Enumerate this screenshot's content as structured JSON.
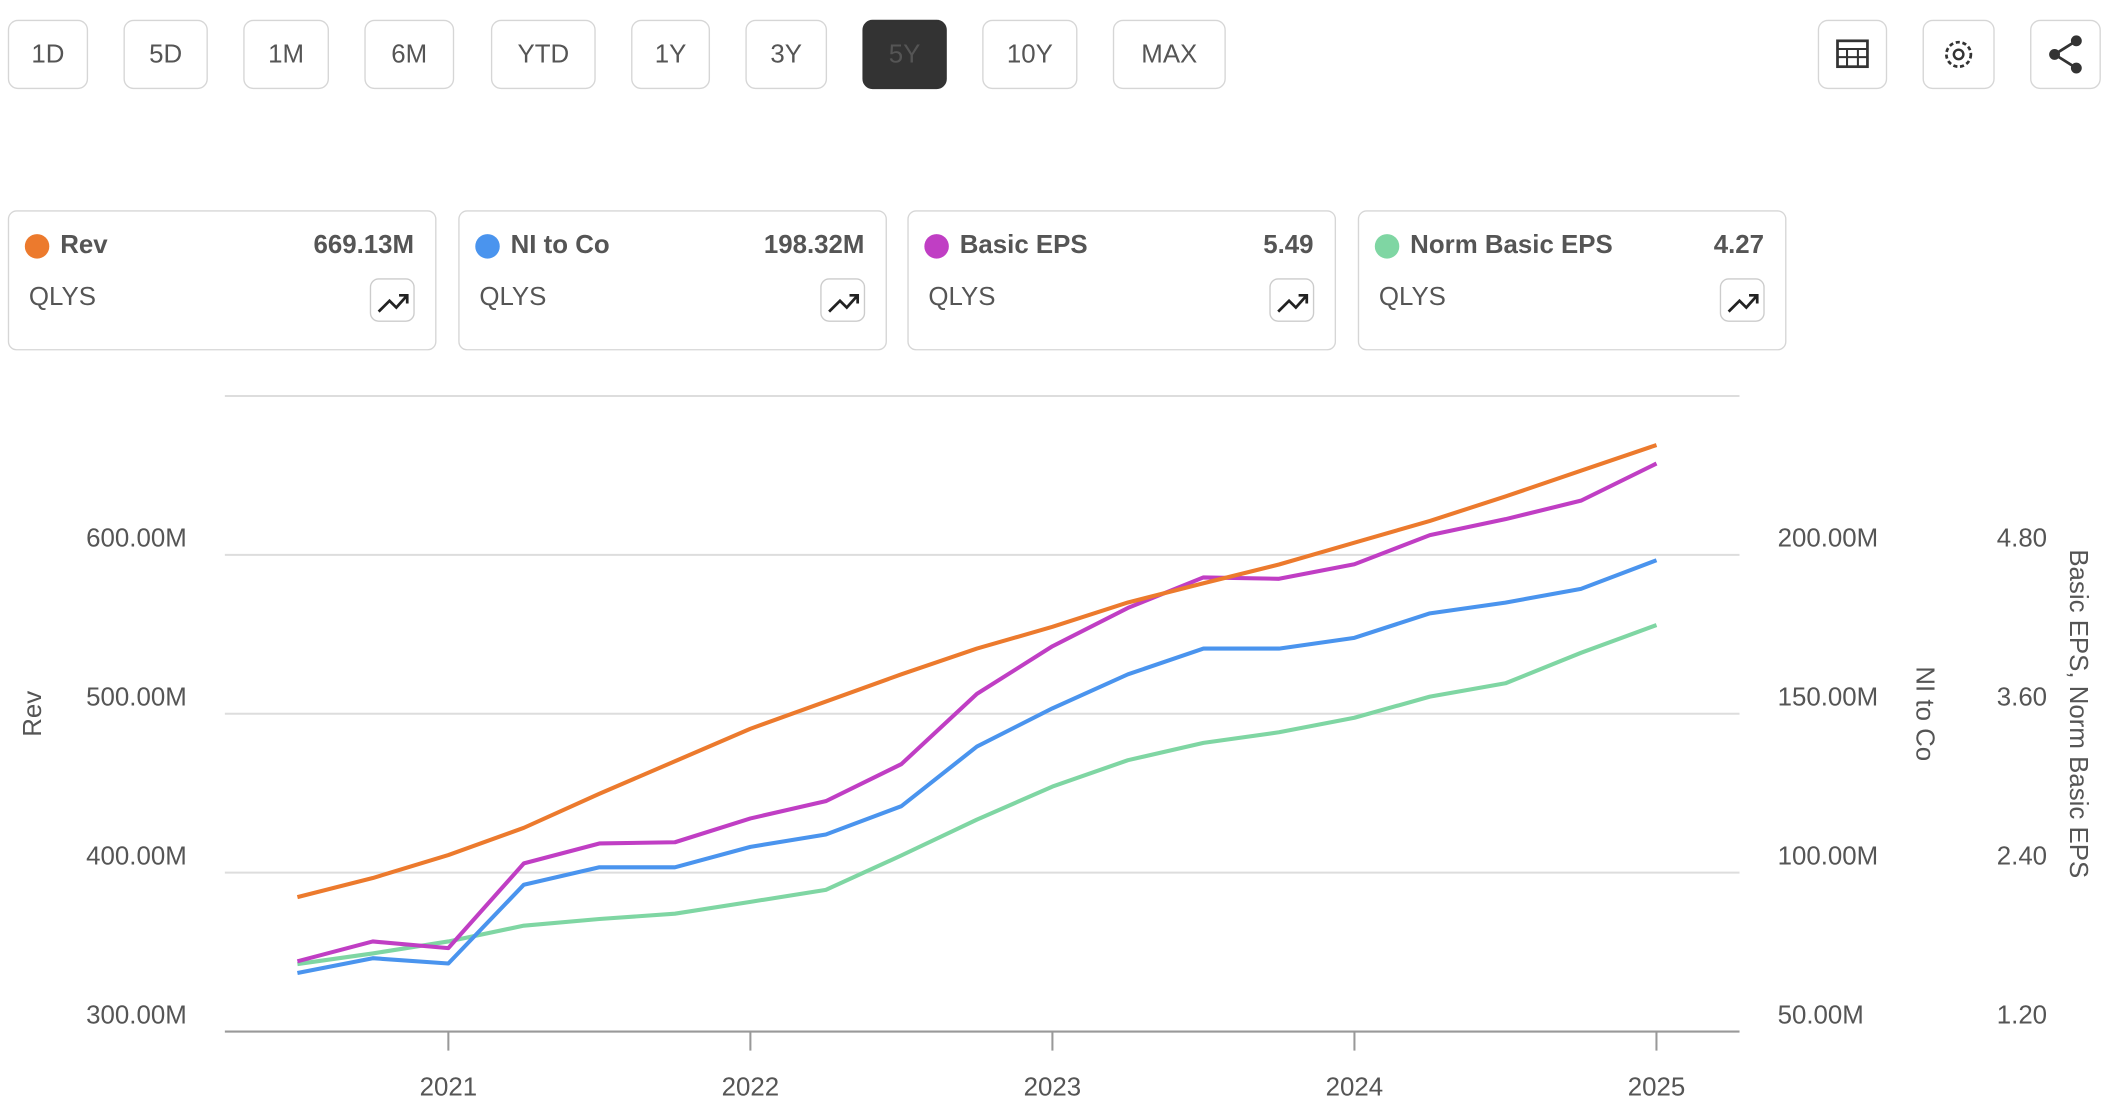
{
  "range_buttons": [
    "1D",
    "5D",
    "1M",
    "6M",
    "YTD",
    "1Y",
    "3Y",
    "5Y",
    "10Y",
    "MAX"
  ],
  "selected_range": "5Y",
  "chart_data": {
    "type": "line",
    "ylabel": "Rev",
    "y2label": "NI to Co",
    "y3label": "Basic EPS, Norm Basic EPS",
    "x": [
      2020.5,
      2020.75,
      2021,
      2021.25,
      2021.5,
      2021.75,
      2022,
      2022.25,
      2022.5,
      2022.75,
      2023,
      2023.25,
      2023.5,
      2023.75,
      2024,
      2024.25,
      2024.5,
      2024.75,
      2025
    ],
    "xlim": [
      2020.26,
      2025.275
    ],
    "xticks": [
      2021,
      2022,
      2023,
      2024,
      2025
    ],
    "ylim": [
      300,
      700
    ],
    "yticks": [
      {
        "value": 300,
        "label": "300.00M"
      },
      {
        "value": 400,
        "label": "400.00M"
      },
      {
        "value": 500,
        "label": "500.00M"
      },
      {
        "value": 600,
        "label": "600.00M"
      }
    ],
    "y2lim": [
      50,
      250
    ],
    "y2ticks": [
      {
        "value": 50,
        "label": "50.00M"
      },
      {
        "value": 100,
        "label": "100.00M"
      },
      {
        "value": 150,
        "label": "150.00M"
      },
      {
        "value": 200,
        "label": "200.00M"
      }
    ],
    "y3lim": [
      1.2,
      6.0
    ],
    "y3ticks": [
      {
        "value": 1.2,
        "label": "1.20"
      },
      {
        "value": 2.4,
        "label": "2.40"
      },
      {
        "value": 3.6,
        "label": "3.60"
      },
      {
        "value": 4.8,
        "label": "4.80"
      }
    ],
    "grid": true,
    "series": [
      {
        "name": "Rev",
        "ticker": "QLYS",
        "color": "#ec7a2d",
        "axis": "y",
        "latest_label": "669.13M",
        "values": [
          384.6,
          396.6,
          411.1,
          428.2,
          449.6,
          470.1,
          490.6,
          507.7,
          524.8,
          541.0,
          554.7,
          570.1,
          582.1,
          594.0,
          607.7,
          621.4,
          636.8,
          653.0,
          669.13
        ]
      },
      {
        "name": "NI to Co",
        "ticker": "QLYS",
        "color": "#4a94ee",
        "axis": "y2",
        "latest_label": "198.32M",
        "values": [
          68.4,
          73.1,
          71.4,
          96.2,
          101.7,
          101.7,
          108.1,
          112.0,
          120.9,
          139.7,
          151.7,
          162.4,
          170.5,
          170.5,
          173.9,
          181.6,
          185.0,
          189.3,
          198.32
        ]
      },
      {
        "name": "Basic EPS",
        "ticker": "QLYS",
        "color": "#c03ec4",
        "axis": "y3",
        "latest_label": "5.49",
        "values": [
          1.73,
          1.88,
          1.83,
          2.47,
          2.62,
          2.63,
          2.81,
          2.94,
          3.22,
          3.75,
          4.11,
          4.4,
          4.63,
          4.62,
          4.73,
          4.95,
          5.07,
          5.21,
          5.49
        ]
      },
      {
        "name": "Norm Basic EPS",
        "ticker": "QLYS",
        "color": "#7fd6a3",
        "axis": "y3",
        "latest_label": "4.27",
        "values": [
          1.71,
          1.79,
          1.88,
          2.0,
          2.05,
          2.09,
          2.18,
          2.27,
          2.53,
          2.8,
          3.05,
          3.25,
          3.38,
          3.46,
          3.57,
          3.73,
          3.83,
          4.06,
          4.27
        ]
      }
    ]
  }
}
